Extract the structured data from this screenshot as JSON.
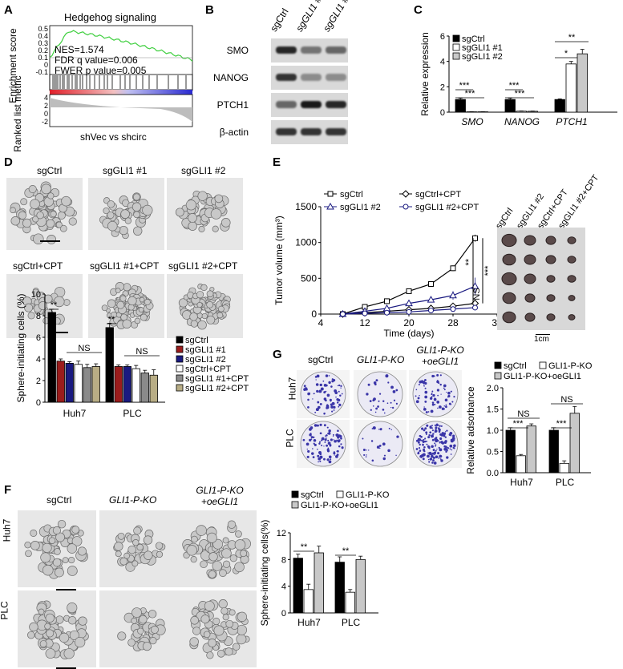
{
  "panels": {
    "A": {
      "label": "A",
      "title": "Hedgehog signaling",
      "ylabel_top": "Enrichment score",
      "ylabel_bottom": "Ranked list metric",
      "nes": "NES=1.574",
      "fdr": "FDR q value=0.006",
      "fwer": "FWER p value=0.005",
      "xlabel": "shVec vs shcirc",
      "yticks_top": [
        "0.5",
        "0.4",
        "0.3",
        "0.2",
        "0.1",
        "0",
        "-0.1"
      ],
      "yticks_bottom": [
        "4",
        "2",
        "0",
        "-2"
      ]
    },
    "B": {
      "label": "B",
      "columns": [
        "sgCtrl",
        "sgGLI1 #1",
        "sgGLI1 #2"
      ],
      "rows": [
        "SMO",
        "NANOG",
        "PTCH1",
        "β-actin"
      ]
    },
    "C": {
      "label": "C",
      "ylabel": "Relative expression",
      "yticks": [
        "0",
        "2",
        "4",
        "6"
      ],
      "legend": [
        "sgCtrl",
        "sgGLI1 #1",
        "sgGLI1 #2"
      ],
      "groups": [
        "SMO",
        "NANOG",
        "PTCH1"
      ],
      "sig": [
        "***",
        "***",
        "***",
        "***",
        "*",
        "**"
      ]
    },
    "D": {
      "label": "D",
      "photo_labels_top": [
        "sgCtrl",
        "sgGLI1 #1",
        "sgGLI1 #2"
      ],
      "photo_labels_bottom": [
        "sgCtrl+CPT",
        "sgGLI1 #1+CPT",
        "sgGLI1 #2+CPT"
      ],
      "ylabel": "Sphere-initiating cells (%)",
      "yticks": [
        "0",
        "2",
        "4",
        "6",
        "8",
        "10"
      ],
      "groups": [
        "Huh7",
        "PLC"
      ],
      "legend": [
        "sgCtrl",
        "sgGLI1 #1",
        "sgGLI1 #2",
        "sgCtrl+CPT",
        "sgGLI1 #1+CPT",
        "sgGLI1 #2+CPT"
      ],
      "sig": [
        "**",
        "NS",
        "**",
        "NS"
      ]
    },
    "E": {
      "label": "E",
      "ylabel": "Tumor volume (mm³)",
      "xlabel": "Time (days)",
      "xticks": [
        "4",
        "12",
        "20",
        "28",
        "36"
      ],
      "yticks": [
        "0",
        "500",
        "1000",
        "1500"
      ],
      "legend": [
        "sgCtrl",
        "sgCtrl+CPT",
        "sgGLI1 #2",
        "sgGLI1 #2+CPT"
      ],
      "sig": [
        "**",
        "***",
        "NS"
      ],
      "photo_labels": [
        "sgCtrl",
        "sgGLI1 #2",
        "sgCtrl+CPT",
        "sgGLI1 #2+CPT"
      ],
      "scale": "1cm"
    },
    "F": {
      "label": "F",
      "photo_cols": [
        "sgCtrl",
        "GLI1-P-KO",
        "GLI1-P-KO +oeGLI1"
      ],
      "photo_rows": [
        "Huh7",
        "PLC"
      ],
      "ylabel": "Sphere-initiating cells(%)",
      "yticks": [
        "0",
        "4",
        "8",
        "12"
      ],
      "groups": [
        "Huh7",
        "PLC"
      ],
      "legend": [
        "sgCtrl",
        "GLI1-P-KO",
        "GLI1-P-KO+oeGLI1"
      ],
      "sig": [
        "**",
        "**"
      ]
    },
    "G": {
      "label": "G",
      "photo_cols": [
        "sgCtrl",
        "GLI1-P-KO",
        "GLI1-P-KO +oeGLI1"
      ],
      "photo_rows": [
        "Huh7",
        "PLC"
      ],
      "ylabel": "Relative adsorbance",
      "yticks": [
        "0.0",
        "0.5",
        "1.0",
        "1.5",
        "2.0"
      ],
      "groups": [
        "Huh7",
        "PLC"
      ],
      "legend": [
        "sgCtrl",
        "GLI1-P-KO",
        "GLI1-P-KO+oeGLI1"
      ],
      "sig": [
        "NS",
        "***",
        "NS",
        "***"
      ]
    }
  },
  "chart_data": [
    {
      "id": "C",
      "type": "bar",
      "categories": [
        "SMO",
        "NANOG",
        "PTCH1"
      ],
      "series": [
        {
          "name": "sgCtrl",
          "values": [
            1.0,
            1.0,
            1.0
          ],
          "err": [
            0.1,
            0.1,
            0.05
          ]
        },
        {
          "name": "sgGLI1 #1",
          "values": [
            0.03,
            0.08,
            3.8
          ],
          "err": [
            0.01,
            0.02,
            0.2
          ]
        },
        {
          "name": "sgGLI1 #2",
          "values": [
            0.03,
            0.07,
            4.6
          ],
          "err": [
            0.01,
            0.02,
            0.35
          ]
        }
      ],
      "ylim": [
        0,
        6
      ]
    },
    {
      "id": "D",
      "type": "bar",
      "categories": [
        "Huh7",
        "PLC"
      ],
      "series": [
        {
          "name": "sgCtrl",
          "values": [
            8.3,
            6.9
          ],
          "err": [
            0.3,
            0.4
          ]
        },
        {
          "name": "sgGLI1 #1",
          "values": [
            3.8,
            3.3
          ],
          "err": [
            0.2,
            0.15
          ]
        },
        {
          "name": "sgGLI1 #2",
          "values": [
            3.6,
            3.3
          ],
          "err": [
            0.15,
            0.15
          ]
        },
        {
          "name": "sgCtrl+CPT",
          "values": [
            3.5,
            3.1
          ],
          "err": [
            0.3,
            0.3
          ]
        },
        {
          "name": "sgGLI1 #1+CPT",
          "values": [
            3.2,
            2.7
          ],
          "err": [
            0.3,
            0.25
          ]
        },
        {
          "name": "sgGLI1 #2+CPT",
          "values": [
            3.3,
            2.5
          ],
          "err": [
            0.25,
            0.5
          ]
        }
      ],
      "ylim": [
        0,
        10
      ]
    },
    {
      "id": "E",
      "type": "line",
      "x": [
        8,
        12,
        16,
        20,
        24,
        28,
        32
      ],
      "series": [
        {
          "name": "sgCtrl",
          "values": [
            0,
            100,
            180,
            320,
            420,
            640,
            1060
          ],
          "err": [
            0,
            10,
            15,
            20,
            30,
            40,
            50
          ]
        },
        {
          "name": "sgCtrl+CPT",
          "values": [
            0,
            20,
            40,
            60,
            80,
            110,
            150
          ],
          "err": [
            0,
            5,
            5,
            10,
            10,
            15,
            20
          ]
        },
        {
          "name": "sgGLI1 #2",
          "values": [
            0,
            40,
            80,
            150,
            200,
            260,
            390
          ],
          "err": [
            0,
            10,
            15,
            20,
            30,
            60,
            120
          ]
        },
        {
          "name": "sgGLI1 #2+CPT",
          "values": [
            0,
            10,
            20,
            30,
            50,
            70,
            90
          ],
          "err": [
            0,
            5,
            5,
            5,
            10,
            10,
            15
          ]
        }
      ],
      "xlim": [
        4,
        36
      ],
      "ylim": [
        0,
        1500
      ]
    },
    {
      "id": "F",
      "type": "bar",
      "categories": [
        "Huh7",
        "PLC"
      ],
      "series": [
        {
          "name": "sgCtrl",
          "values": [
            8.2,
            7.6
          ],
          "err": [
            0.6,
            0.8
          ]
        },
        {
          "name": "GLI1-P-KO",
          "values": [
            3.5,
            3.1
          ],
          "err": [
            0.8,
            0.4
          ]
        },
        {
          "name": "GLI1-P-KO+oeGLI1",
          "values": [
            9.0,
            8.0
          ],
          "err": [
            1.0,
            0.5
          ]
        }
      ],
      "ylim": [
        0,
        12
      ]
    },
    {
      "id": "G",
      "type": "bar",
      "categories": [
        "Huh7",
        "PLC"
      ],
      "series": [
        {
          "name": "sgCtrl",
          "values": [
            1.0,
            1.0
          ],
          "err": [
            0.06,
            0.06
          ]
        },
        {
          "name": "GLI1-P-KO",
          "values": [
            0.4,
            0.22
          ],
          "err": [
            0.03,
            0.06
          ]
        },
        {
          "name": "GLI1-P-KO+oeGLI1",
          "values": [
            1.1,
            1.4
          ],
          "err": [
            0.05,
            0.16
          ]
        }
      ],
      "ylim": [
        0,
        2.0
      ]
    }
  ],
  "colors": {
    "black": "#000000",
    "white": "#ffffff",
    "grey": "#c9c9c9",
    "red": "#9b1c1c",
    "navy": "#1a1a80",
    "lightgrey": "#c8c8c8",
    "darkgrey": "#8a8a8a",
    "tan": "#b8ad85",
    "gsea": "#3fcf3f",
    "crystal": "#3a35a8"
  }
}
